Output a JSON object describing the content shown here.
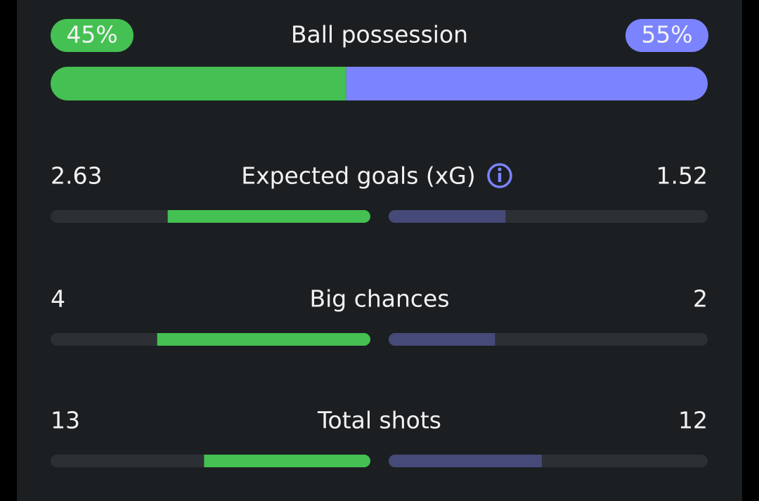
{
  "stats": [
    {
      "label": "Ball possession",
      "home": 45,
      "home_label": "45%",
      "away": 55,
      "away_label": "55%"
    },
    {
      "label": "Expected goals (xG)",
      "home": 2.63,
      "away": 1.52
    },
    {
      "label": "Big chances",
      "home": 4,
      "away": 2
    },
    {
      "label": "Total shots",
      "home": 13,
      "away": 12
    }
  ]
}
